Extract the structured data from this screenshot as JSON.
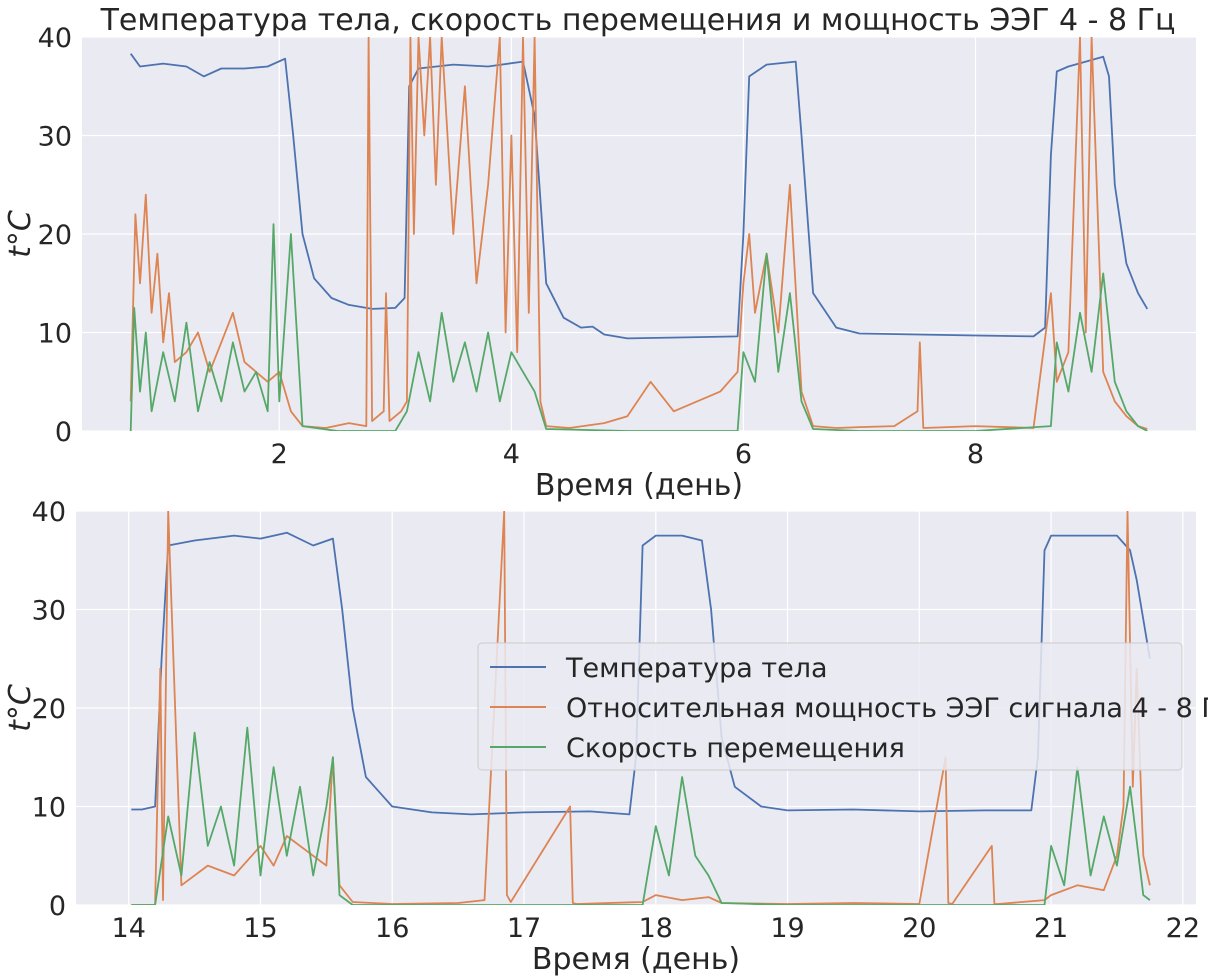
{
  "title": "Температура тела, скорость перемещения и мощность ЭЭГ 4 - 8 Гц",
  "colors": {
    "background": "#eaeaf2",
    "grid": "#ffffff",
    "temperature": "#4c72b0",
    "eeg": "#dd8452",
    "speed": "#55a868"
  },
  "legend": {
    "placement": "center-right",
    "entries": [
      "Температура тела",
      "Относительная мощность ЭЭГ сигнала 4 - 8 Гц",
      "Скорость перемещения"
    ]
  },
  "chart_data": [
    {
      "type": "line",
      "title": "Температура тела, скорость перемещения и мощность ЭЭГ 4 - 8 Гц",
      "xlabel": "Время (день)",
      "ylabel": "t°C",
      "xlim": [
        0.3,
        9.9
      ],
      "ylim": [
        0,
        40
      ],
      "xticks": [
        2,
        4,
        6,
        8
      ],
      "yticks": [
        0,
        10,
        20,
        30,
        40
      ],
      "grid": true,
      "series": [
        {
          "name": "Температура тела",
          "x": [
            0.72,
            0.8,
            1.0,
            1.2,
            1.35,
            1.5,
            1.7,
            1.9,
            2.05,
            2.12,
            2.2,
            2.3,
            2.45,
            2.6,
            2.8,
            3.0,
            3.08,
            3.12,
            3.2,
            3.5,
            3.8,
            4.1,
            4.2,
            4.3,
            4.45,
            4.6,
            4.7,
            4.8,
            5.0,
            5.5,
            5.95,
            6.0,
            6.05,
            6.2,
            6.45,
            6.5,
            6.6,
            6.8,
            7.0,
            7.5,
            8.0,
            8.5,
            8.6,
            8.65,
            8.7,
            8.8,
            9.1,
            9.15,
            9.2,
            9.3,
            9.4,
            9.48
          ],
          "y": [
            38.3,
            37.0,
            37.3,
            37.0,
            36.0,
            36.8,
            36.8,
            37.0,
            37.8,
            30.0,
            20.0,
            15.5,
            13.5,
            12.8,
            12.4,
            12.5,
            13.5,
            35.0,
            36.8,
            37.2,
            37.0,
            37.5,
            32.0,
            15.0,
            11.5,
            10.5,
            10.6,
            9.8,
            9.4,
            9.5,
            9.6,
            20.0,
            36.0,
            37.2,
            37.5,
            30.0,
            14.0,
            10.5,
            9.9,
            9.8,
            9.7,
            9.6,
            10.5,
            28.0,
            36.5,
            37.0,
            38.0,
            36.0,
            25.0,
            17.0,
            14.0,
            12.4
          ]
        },
        {
          "name": "Относительная мощность ЭЭГ сигнала 4 - 8 Гц",
          "x": [
            0.72,
            0.76,
            0.8,
            0.85,
            0.9,
            0.95,
            1.0,
            1.05,
            1.1,
            1.2,
            1.3,
            1.4,
            1.5,
            1.6,
            1.7,
            1.8,
            1.9,
            2.0,
            2.05,
            2.1,
            2.2,
            2.4,
            2.6,
            2.75,
            2.77,
            2.8,
            2.9,
            2.92,
            2.95,
            3.05,
            3.1,
            3.13,
            3.16,
            3.2,
            3.25,
            3.3,
            3.35,
            3.4,
            3.5,
            3.6,
            3.7,
            3.8,
            3.9,
            3.95,
            4.0,
            4.05,
            4.1,
            4.15,
            4.2,
            4.25,
            4.3,
            4.5,
            4.8,
            5.0,
            5.2,
            5.4,
            5.6,
            5.8,
            5.95,
            6.0,
            6.05,
            6.1,
            6.2,
            6.3,
            6.4,
            6.5,
            6.6,
            6.8,
            7.0,
            7.3,
            7.5,
            7.52,
            7.55,
            8.0,
            8.5,
            8.65,
            8.7,
            8.8,
            8.9,
            8.95,
            9.0,
            9.1,
            9.2,
            9.3,
            9.4,
            9.48
          ],
          "y": [
            3.0,
            22.0,
            15.0,
            24.0,
            12.0,
            18.0,
            9.0,
            14.0,
            7.0,
            8.0,
            10.0,
            6.0,
            9.0,
            12.0,
            7.0,
            6.0,
            5.0,
            6.0,
            4.0,
            2.0,
            0.5,
            0.3,
            0.8,
            0.5,
            40.0,
            1.0,
            2.0,
            14.0,
            1.0,
            2.0,
            3.0,
            40.0,
            20.0,
            40.0,
            30.0,
            40.0,
            25.0,
            40.0,
            20.0,
            35.0,
            15.0,
            25.0,
            40.0,
            10.0,
            30.0,
            8.0,
            40.0,
            12.0,
            40.0,
            3.0,
            0.5,
            0.3,
            0.8,
            1.5,
            5.0,
            2.0,
            3.0,
            4.0,
            6.0,
            15.0,
            20.0,
            12.0,
            18.0,
            10.0,
            25.0,
            4.0,
            0.5,
            0.3,
            0.4,
            0.5,
            2.0,
            9.0,
            0.3,
            0.5,
            0.3,
            14.0,
            5.0,
            8.0,
            40.0,
            10.0,
            40.0,
            6.0,
            3.0,
            1.5,
            0.5,
            0.2
          ]
        },
        {
          "name": "Скорость перемещения",
          "x": [
            0.72,
            0.75,
            0.8,
            0.85,
            0.9,
            1.0,
            1.1,
            1.2,
            1.3,
            1.4,
            1.5,
            1.6,
            1.7,
            1.8,
            1.9,
            1.95,
            2.0,
            2.1,
            2.2,
            2.5,
            3.0,
            3.1,
            3.2,
            3.3,
            3.4,
            3.5,
            3.6,
            3.7,
            3.8,
            3.9,
            4.0,
            4.1,
            4.2,
            4.3,
            5.0,
            5.95,
            6.0,
            6.1,
            6.2,
            6.3,
            6.4,
            6.5,
            6.6,
            7.0,
            8.0,
            8.65,
            8.7,
            8.8,
            8.9,
            9.0,
            9.1,
            9.2,
            9.3,
            9.4,
            9.48
          ],
          "y": [
            0.0,
            12.5,
            4.0,
            10.0,
            2.0,
            8.0,
            3.0,
            11.0,
            2.0,
            7.0,
            3.0,
            9.0,
            4.0,
            6.0,
            2.0,
            21.0,
            3.0,
            20.0,
            0.5,
            0.0,
            0.0,
            2.0,
            8.0,
            3.0,
            12.0,
            5.0,
            9.0,
            4.0,
            10.0,
            3.0,
            8.0,
            6.0,
            4.0,
            0.2,
            0.0,
            0.0,
            8.0,
            5.0,
            18.0,
            6.0,
            14.0,
            3.0,
            0.2,
            0.0,
            0.0,
            0.5,
            9.0,
            4.0,
            12.0,
            6.0,
            16.0,
            5.0,
            2.0,
            0.5,
            0.0
          ]
        }
      ]
    },
    {
      "type": "line",
      "xlabel": "Время (день)",
      "ylabel": "t°C",
      "xlim": [
        13.6,
        22.1
      ],
      "ylim": [
        0,
        40
      ],
      "xticks": [
        14,
        15,
        16,
        17,
        18,
        19,
        20,
        21,
        22
      ],
      "yticks": [
        0,
        10,
        20,
        30,
        40
      ],
      "grid": true,
      "series": [
        {
          "name": "Температура тела",
          "x": [
            14.02,
            14.1,
            14.2,
            14.25,
            14.3,
            14.5,
            14.8,
            15.0,
            15.2,
            15.4,
            15.55,
            15.62,
            15.7,
            15.8,
            16.0,
            16.3,
            16.6,
            17.0,
            17.5,
            17.8,
            17.85,
            17.9,
            18.0,
            18.2,
            18.35,
            18.42,
            18.5,
            18.6,
            18.8,
            19.0,
            19.5,
            20.0,
            20.5,
            20.85,
            20.9,
            20.95,
            21.0,
            21.2,
            21.5,
            21.6,
            21.65,
            21.7,
            21.75
          ],
          "y": [
            9.7,
            9.7,
            10.0,
            25.0,
            36.5,
            37.0,
            37.5,
            37.2,
            37.8,
            36.5,
            37.2,
            30.0,
            20.0,
            13.0,
            10.0,
            9.4,
            9.2,
            9.4,
            9.5,
            9.2,
            15.0,
            36.5,
            37.5,
            37.5,
            37.0,
            30.0,
            17.0,
            12.0,
            10.0,
            9.6,
            9.7,
            9.5,
            9.6,
            9.6,
            15.0,
            36.0,
            37.5,
            37.5,
            37.5,
            36.0,
            33.0,
            29.0,
            25.0
          ]
        },
        {
          "name": "Относительная мощность ЭЭГ сигнала 4 - 8 Гц",
          "x": [
            14.02,
            14.2,
            14.24,
            14.26,
            14.3,
            14.4,
            14.6,
            14.8,
            15.0,
            15.1,
            15.2,
            15.4,
            15.5,
            15.55,
            15.6,
            15.7,
            16.0,
            16.5,
            16.7,
            16.85,
            16.87,
            16.9,
            17.35,
            17.37,
            17.4,
            17.9,
            18.0,
            18.2,
            18.4,
            18.5,
            19.0,
            19.5,
            20.0,
            20.2,
            20.22,
            20.25,
            20.55,
            20.57,
            20.6,
            20.95,
            21.0,
            21.2,
            21.4,
            21.5,
            21.55,
            21.58,
            21.62,
            21.65,
            21.7,
            21.75
          ],
          "y": [
            0.0,
            0.0,
            24.0,
            0.5,
            40.0,
            2.0,
            4.0,
            3.0,
            6.0,
            4.0,
            7.0,
            5.0,
            4.0,
            15.0,
            2.0,
            0.3,
            0.1,
            0.2,
            0.5,
            40.0,
            1.0,
            0.3,
            10.0,
            0.2,
            0.1,
            0.3,
            1.0,
            0.5,
            0.8,
            0.2,
            0.1,
            0.2,
            0.1,
            15.0,
            0.2,
            0.1,
            6.0,
            0.1,
            0.1,
            0.5,
            1.0,
            2.0,
            1.5,
            5.0,
            10.0,
            40.0,
            12.0,
            24.0,
            5.0,
            2.0
          ]
        },
        {
          "name": "Скорость перемещения",
          "x": [
            14.02,
            14.2,
            14.3,
            14.4,
            14.5,
            14.6,
            14.7,
            14.8,
            14.9,
            15.0,
            15.1,
            15.2,
            15.3,
            15.4,
            15.5,
            15.55,
            15.6,
            15.7,
            16.0,
            17.0,
            17.9,
            18.0,
            18.1,
            18.2,
            18.3,
            18.4,
            18.5,
            19.0,
            20.0,
            20.95,
            21.0,
            21.1,
            21.2,
            21.3,
            21.4,
            21.5,
            21.6,
            21.7,
            21.75
          ],
          "y": [
            0.0,
            0.0,
            9.0,
            3.0,
            17.5,
            6.0,
            10.0,
            4.0,
            18.0,
            3.0,
            14.0,
            5.0,
            12.0,
            3.0,
            10.0,
            15.0,
            1.0,
            0.0,
            0.0,
            0.0,
            0.0,
            8.0,
            3.0,
            13.0,
            5.0,
            3.0,
            0.2,
            0.0,
            0.0,
            0.0,
            6.0,
            2.0,
            14.0,
            3.0,
            9.0,
            4.0,
            12.0,
            1.0,
            0.5
          ]
        }
      ]
    }
  ]
}
